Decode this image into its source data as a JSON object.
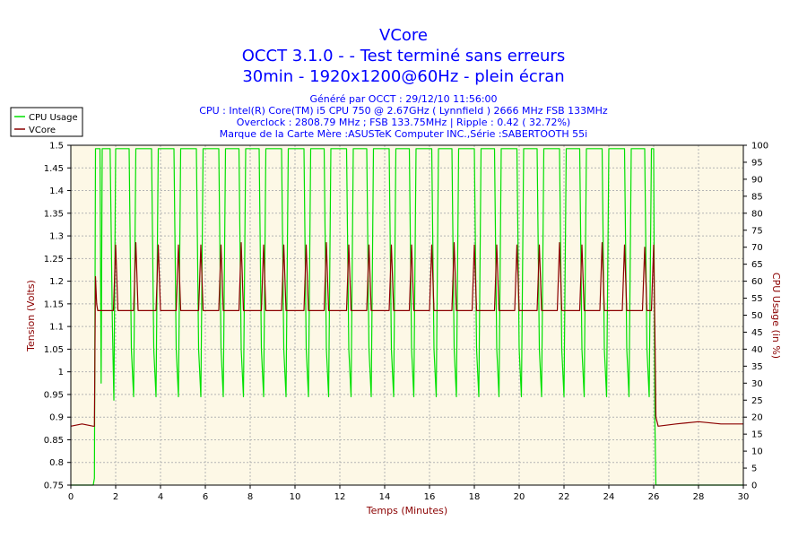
{
  "header": {
    "title": "VCore",
    "subtitle1": "OCCT 3.1.0 -  - Test terminé sans erreurs",
    "subtitle2": "30min - 1920x1200@60Hz - plein écran",
    "info1": "Généré par OCCT : 29/12/10 11:56:00",
    "info2": "CPU : Intel(R) Core(TM) i5 CPU 750 @ 2.67GHz ( Lynnfield ) 2666 MHz FSB 133MHz",
    "info3": "Overclock : 2808.79 MHz ; FSB 133.75MHz | Ripple : 0.42 ( 32.72%)",
    "info4": "Marque de la Carte Mère :ASUSTeK Computer INC.,Série :SABERTOOTH 55i"
  },
  "colors": {
    "title": "#0000ff",
    "plot_background": "#fdf8e6",
    "grid": "#b4b4b4",
    "cpu_usage": "#00e000",
    "vcore": "#8b0000",
    "axis_label": "#8b0000"
  },
  "chart_data": {
    "type": "line",
    "xlabel": "Temps (Minutes)",
    "ylabel_left": "Tension (Volts)",
    "ylabel_right": "CPU Usage (in %)",
    "xlim": [
      0,
      30
    ],
    "ylim_left": [
      0.75,
      1.5
    ],
    "ylim_right": [
      0,
      100
    ],
    "x_ticks": [
      0,
      2,
      4,
      6,
      8,
      10,
      12,
      14,
      16,
      18,
      20,
      22,
      24,
      26,
      28,
      30
    ],
    "y_left_ticks": [
      "0.75",
      "0.8",
      "0.85",
      "0.9",
      "0.95",
      "1",
      "1.05",
      "1.1",
      "1.15",
      "1.2",
      "1.25",
      "1.3",
      "1.35",
      "1.4",
      "1.45",
      "1.5"
    ],
    "y_right_ticks": [
      0,
      5,
      10,
      15,
      20,
      25,
      30,
      35,
      40,
      45,
      50,
      55,
      60,
      65,
      70,
      75,
      80,
      85,
      90,
      95,
      100
    ],
    "grid": true,
    "legend_position": "top-left",
    "legend": [
      "CPU Usage",
      "VCore"
    ],
    "series": [
      {
        "name": "CPU Usage",
        "axis": "right",
        "color": "#00e000",
        "points": [
          [
            0.0,
            0
          ],
          [
            1.0,
            0
          ],
          [
            1.05,
            2
          ],
          [
            1.1,
            99
          ],
          [
            1.3,
            99
          ],
          [
            1.35,
            30
          ],
          [
            1.4,
            99
          ],
          [
            1.75,
            99
          ],
          [
            1.85,
            48
          ],
          [
            1.92,
            25
          ],
          [
            2.0,
            99
          ],
          [
            2.6,
            99
          ],
          [
            2.7,
            40
          ],
          [
            2.8,
            26
          ],
          [
            2.9,
            99
          ],
          [
            3.6,
            99
          ],
          [
            3.7,
            40
          ],
          [
            3.8,
            26
          ],
          [
            3.9,
            99
          ],
          [
            4.6,
            99
          ],
          [
            4.7,
            40
          ],
          [
            4.8,
            26
          ],
          [
            4.9,
            99
          ],
          [
            5.6,
            99
          ],
          [
            5.7,
            40
          ],
          [
            5.8,
            26
          ],
          [
            5.9,
            99
          ],
          [
            6.6,
            99
          ],
          [
            6.7,
            40
          ],
          [
            6.8,
            26
          ],
          [
            6.9,
            99
          ],
          [
            7.5,
            99
          ],
          [
            7.6,
            40
          ],
          [
            7.7,
            26
          ],
          [
            7.8,
            99
          ],
          [
            8.4,
            99
          ],
          [
            8.5,
            40
          ],
          [
            8.6,
            26
          ],
          [
            8.7,
            99
          ],
          [
            9.4,
            99
          ],
          [
            9.5,
            40
          ],
          [
            9.6,
            26
          ],
          [
            9.7,
            99
          ],
          [
            10.4,
            99
          ],
          [
            10.5,
            40
          ],
          [
            10.6,
            26
          ],
          [
            10.7,
            99
          ],
          [
            11.3,
            99
          ],
          [
            11.4,
            40
          ],
          [
            11.5,
            26
          ],
          [
            11.6,
            99
          ],
          [
            12.3,
            99
          ],
          [
            12.4,
            40
          ],
          [
            12.5,
            26
          ],
          [
            12.6,
            99
          ],
          [
            13.2,
            99
          ],
          [
            13.3,
            40
          ],
          [
            13.4,
            26
          ],
          [
            13.5,
            99
          ],
          [
            14.2,
            99
          ],
          [
            14.3,
            40
          ],
          [
            14.4,
            26
          ],
          [
            14.5,
            99
          ],
          [
            15.1,
            99
          ],
          [
            15.2,
            40
          ],
          [
            15.3,
            26
          ],
          [
            15.4,
            99
          ],
          [
            16.1,
            99
          ],
          [
            16.2,
            40
          ],
          [
            16.3,
            26
          ],
          [
            16.4,
            99
          ],
          [
            17.0,
            99
          ],
          [
            17.1,
            40
          ],
          [
            17.2,
            26
          ],
          [
            17.3,
            99
          ],
          [
            18.0,
            99
          ],
          [
            18.1,
            40
          ],
          [
            18.2,
            26
          ],
          [
            18.3,
            99
          ],
          [
            18.9,
            99
          ],
          [
            19.0,
            40
          ],
          [
            19.1,
            26
          ],
          [
            19.2,
            99
          ],
          [
            19.9,
            99
          ],
          [
            20.0,
            40
          ],
          [
            20.1,
            26
          ],
          [
            20.2,
            99
          ],
          [
            20.8,
            99
          ],
          [
            20.9,
            40
          ],
          [
            21.0,
            26
          ],
          [
            21.1,
            99
          ],
          [
            21.8,
            99
          ],
          [
            21.9,
            40
          ],
          [
            22.0,
            26
          ],
          [
            22.1,
            99
          ],
          [
            22.7,
            99
          ],
          [
            22.8,
            40
          ],
          [
            22.9,
            26
          ],
          [
            23.0,
            99
          ],
          [
            23.7,
            99
          ],
          [
            23.8,
            40
          ],
          [
            23.9,
            26
          ],
          [
            24.0,
            99
          ],
          [
            24.7,
            99
          ],
          [
            24.8,
            40
          ],
          [
            24.9,
            26
          ],
          [
            25.0,
            99
          ],
          [
            25.6,
            99
          ],
          [
            25.7,
            40
          ],
          [
            25.8,
            26
          ],
          [
            25.9,
            99
          ],
          [
            26.0,
            99
          ],
          [
            26.05,
            20
          ],
          [
            26.1,
            0
          ],
          [
            30.0,
            0
          ]
        ]
      },
      {
        "name": "VCore",
        "axis": "left",
        "color": "#8b0000",
        "points": [
          [
            0.0,
            0.88
          ],
          [
            0.5,
            0.885
          ],
          [
            1.0,
            0.88
          ],
          [
            1.05,
            0.88
          ],
          [
            1.1,
            1.21
          ],
          [
            1.15,
            1.15
          ],
          [
            1.2,
            1.135
          ],
          [
            1.9,
            1.135
          ],
          [
            2.0,
            1.28
          ],
          [
            2.1,
            1.135
          ],
          [
            2.8,
            1.135
          ],
          [
            2.9,
            1.285
          ],
          [
            3.0,
            1.135
          ],
          [
            3.8,
            1.135
          ],
          [
            3.9,
            1.28
          ],
          [
            4.0,
            1.135
          ],
          [
            4.7,
            1.135
          ],
          [
            4.8,
            1.28
          ],
          [
            4.9,
            1.135
          ],
          [
            5.7,
            1.135
          ],
          [
            5.8,
            1.28
          ],
          [
            5.9,
            1.135
          ],
          [
            6.6,
            1.135
          ],
          [
            6.7,
            1.28
          ],
          [
            6.8,
            1.135
          ],
          [
            7.5,
            1.135
          ],
          [
            7.6,
            1.285
          ],
          [
            7.7,
            1.135
          ],
          [
            8.5,
            1.135
          ],
          [
            8.6,
            1.28
          ],
          [
            8.7,
            1.135
          ],
          [
            9.4,
            1.135
          ],
          [
            9.5,
            1.28
          ],
          [
            9.6,
            1.135
          ],
          [
            10.4,
            1.135
          ],
          [
            10.5,
            1.28
          ],
          [
            10.6,
            1.135
          ],
          [
            11.3,
            1.135
          ],
          [
            11.4,
            1.285
          ],
          [
            11.5,
            1.135
          ],
          [
            12.3,
            1.135
          ],
          [
            12.4,
            1.28
          ],
          [
            12.5,
            1.135
          ],
          [
            13.2,
            1.135
          ],
          [
            13.3,
            1.28
          ],
          [
            13.4,
            1.135
          ],
          [
            14.2,
            1.135
          ],
          [
            14.3,
            1.28
          ],
          [
            14.4,
            1.135
          ],
          [
            15.1,
            1.135
          ],
          [
            15.2,
            1.28
          ],
          [
            15.3,
            1.135
          ],
          [
            16.0,
            1.135
          ],
          [
            16.1,
            1.28
          ],
          [
            16.2,
            1.135
          ],
          [
            17.0,
            1.135
          ],
          [
            17.1,
            1.285
          ],
          [
            17.2,
            1.135
          ],
          [
            17.9,
            1.135
          ],
          [
            18.0,
            1.28
          ],
          [
            18.1,
            1.135
          ],
          [
            18.9,
            1.135
          ],
          [
            19.0,
            1.28
          ],
          [
            19.1,
            1.135
          ],
          [
            19.8,
            1.135
          ],
          [
            19.9,
            1.28
          ],
          [
            20.0,
            1.135
          ],
          [
            20.8,
            1.135
          ],
          [
            20.9,
            1.28
          ],
          [
            21.0,
            1.135
          ],
          [
            21.7,
            1.135
          ],
          [
            21.8,
            1.285
          ],
          [
            21.9,
            1.135
          ],
          [
            22.7,
            1.135
          ],
          [
            22.8,
            1.28
          ],
          [
            22.9,
            1.135
          ],
          [
            23.6,
            1.135
          ],
          [
            23.7,
            1.285
          ],
          [
            23.8,
            1.135
          ],
          [
            24.6,
            1.135
          ],
          [
            24.7,
            1.28
          ],
          [
            24.8,
            1.135
          ],
          [
            25.5,
            1.135
          ],
          [
            25.6,
            1.275
          ],
          [
            25.7,
            1.135
          ],
          [
            25.9,
            1.135
          ],
          [
            26.0,
            1.28
          ],
          [
            26.05,
            1.1
          ],
          [
            26.1,
            0.9
          ],
          [
            26.2,
            0.88
          ],
          [
            27.0,
            0.885
          ],
          [
            28.0,
            0.89
          ],
          [
            29.0,
            0.885
          ],
          [
            30.0,
            0.885
          ]
        ]
      }
    ]
  }
}
